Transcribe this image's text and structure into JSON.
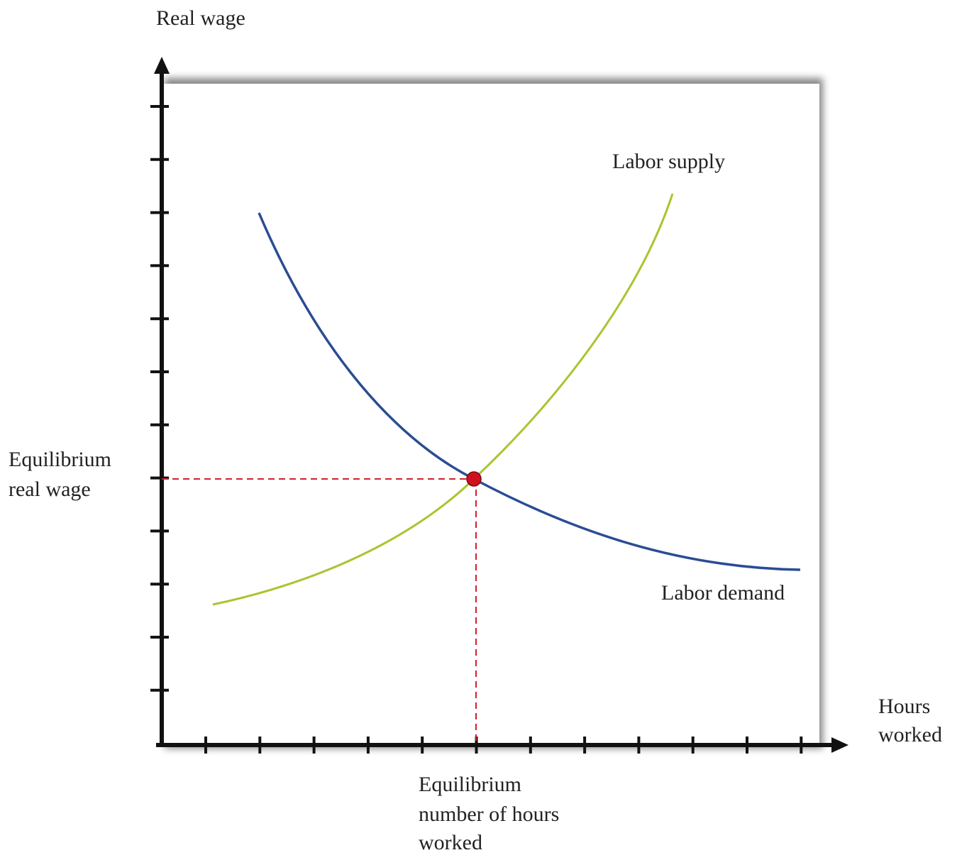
{
  "y_axis_label": "Real wage",
  "x_axis_label": [
    "Hours",
    "worked"
  ],
  "curves": {
    "supply": "Labor supply",
    "demand": "Labor demand"
  },
  "equilibrium": {
    "wage": [
      "Equilibrium",
      "real wage"
    ],
    "hours": [
      "Equilibrium",
      "number of hours",
      "worked"
    ]
  }
}
